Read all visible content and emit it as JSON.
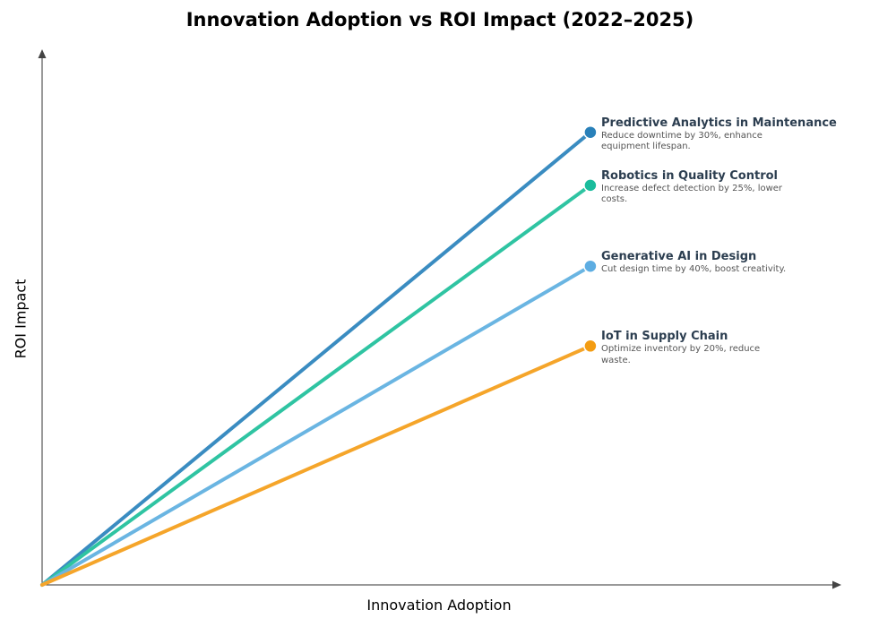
{
  "chart_data": {
    "type": "line",
    "title": "Innovation Adoption vs ROI Impact (2022–2025)",
    "xlabel": "Innovation Adoption",
    "ylabel": "ROI Impact",
    "xlim": [
      0,
      1
    ],
    "ylim": [
      0,
      1
    ],
    "grid": false,
    "ticks": false,
    "series": [
      {
        "name": "Predictive Analytics in Maintenance",
        "description": "Reduce downtime by 30%, enhance equipment lifespan.",
        "line_color": "#3a8cc1",
        "point_color": "#2980b9",
        "x": [
          0,
          0.686
        ],
        "y": [
          0,
          0.845
        ]
      },
      {
        "name": "Robotics in Quality Control",
        "description": "Increase defect detection by 25%, lower costs.",
        "line_color": "#2fc4a2",
        "point_color": "#1abc9c",
        "x": [
          0,
          0.686
        ],
        "y": [
          0,
          0.746
        ]
      },
      {
        "name": "Generative AI in Design",
        "description": "Cut design time by 40%, boost creativity.",
        "line_color": "#6ab5e2",
        "point_color": "#5dade2",
        "x": [
          0,
          0.686
        ],
        "y": [
          0,
          0.595
        ]
      },
      {
        "name": "IoT in Supply Chain",
        "description": "Optimize inventory by 20%, reduce waste.",
        "line_color": "#f5a52a",
        "point_color": "#f39c12",
        "x": [
          0,
          0.686
        ],
        "y": [
          0,
          0.446
        ]
      }
    ]
  }
}
